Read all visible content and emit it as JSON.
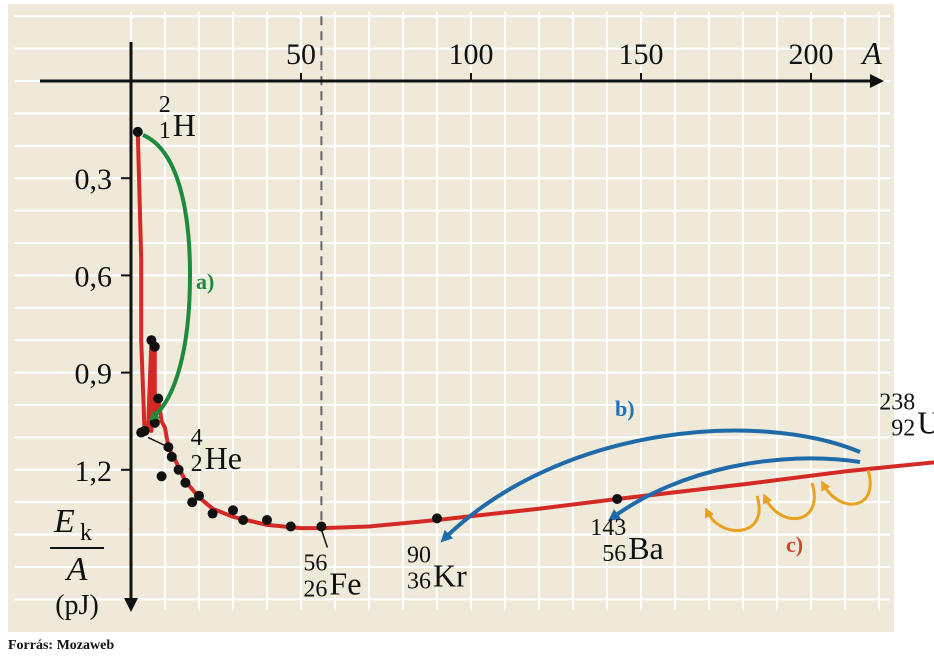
{
  "chart_data": {
    "type": "scatter",
    "title": "",
    "xlabel": "A",
    "ylabel": {
      "numerator": "E",
      "numerator_sub": "k",
      "denominator": "A",
      "unit": "(pJ)"
    },
    "x_ticks": [
      50,
      100,
      150,
      200
    ],
    "y_ticks": [
      "0,3",
      "0,6",
      "0,9",
      "1,2"
    ],
    "y_tick_values": [
      0.3,
      0.6,
      0.9,
      1.2
    ],
    "xlim": [
      0,
      220
    ],
    "ylim": [
      0.0,
      1.42
    ],
    "y_inverted": true,
    "grid": true,
    "background_color": "#efe9da",
    "grid_color": "#ffffff",
    "curve_color": "#d42a26",
    "points": [
      [
        2,
        0.157
      ],
      [
        3,
        1.085
      ],
      [
        4,
        1.08
      ],
      [
        6,
        0.8
      ],
      [
        7,
        0.82
      ],
      [
        7,
        1.055
      ],
      [
        8,
        0.98
      ],
      [
        9,
        1.22
      ],
      [
        11,
        1.13
      ],
      [
        12,
        1.16
      ],
      [
        14,
        1.2
      ],
      [
        16,
        1.24
      ],
      [
        18,
        1.3
      ],
      [
        20,
        1.28
      ],
      [
        24,
        1.335
      ],
      [
        30,
        1.325
      ],
      [
        33,
        1.355
      ],
      [
        40,
        1.355
      ],
      [
        47,
        1.375
      ],
      [
        56,
        1.375
      ],
      [
        90,
        1.35
      ],
      [
        143,
        1.29
      ],
      [
        238,
        1.18
      ]
    ],
    "curve": [
      [
        2,
        0.157
      ],
      [
        3,
        0.55
      ],
      [
        3,
        0.8
      ],
      [
        4,
        1.085
      ],
      [
        5,
        1.08
      ],
      [
        6,
        0.8
      ],
      [
        6,
        1.08
      ],
      [
        7,
        0.82
      ],
      [
        7,
        1.055
      ],
      [
        8,
        0.98
      ],
      [
        9,
        1.05
      ],
      [
        10,
        1.07
      ],
      [
        11,
        1.13
      ],
      [
        13,
        1.17
      ],
      [
        16,
        1.235
      ],
      [
        20,
        1.285
      ],
      [
        24,
        1.32
      ],
      [
        30,
        1.345
      ],
      [
        40,
        1.37
      ],
      [
        50,
        1.38
      ],
      [
        56,
        1.38
      ],
      [
        70,
        1.375
      ],
      [
        90,
        1.355
      ],
      [
        120,
        1.32
      ],
      [
        143,
        1.29
      ],
      [
        180,
        1.245
      ],
      [
        210,
        1.205
      ],
      [
        238,
        1.175
      ],
      [
        240,
        1.17
      ]
    ],
    "reference_line": {
      "x": 56,
      "label": "Fe"
    },
    "nuclide_labels": [
      {
        "mass": "2",
        "atomic": "1",
        "symbol": "H",
        "x": 2,
        "y": 0.157
      },
      {
        "mass": "4",
        "atomic": "2",
        "symbol": "He",
        "x": 4,
        "y": 1.08
      },
      {
        "mass": "56",
        "atomic": "26",
        "symbol": "Fe",
        "x": 56,
        "y": 1.375
      },
      {
        "mass": "90",
        "atomic": "36",
        "symbol": "Kr",
        "x": 90,
        "y": 1.35
      },
      {
        "mass": "143",
        "atomic": "56",
        "symbol": "Ba",
        "x": 143,
        "y": 1.29
      },
      {
        "mass": "238",
        "atomic": "92",
        "symbol": "U",
        "x": 238,
        "y": 1.18
      }
    ],
    "annotations": [
      {
        "label": "a)",
        "color": "#1d8a3e"
      },
      {
        "label": "b)",
        "color": "#1f73b8"
      },
      {
        "label": "c)",
        "color": "#d6452a"
      }
    ],
    "arrow_colors": {
      "a": "#1d8a3e",
      "b": "#1f6aa8",
      "c": "#e8a21f"
    }
  },
  "source_caption": "Forrás: Mozaweb"
}
